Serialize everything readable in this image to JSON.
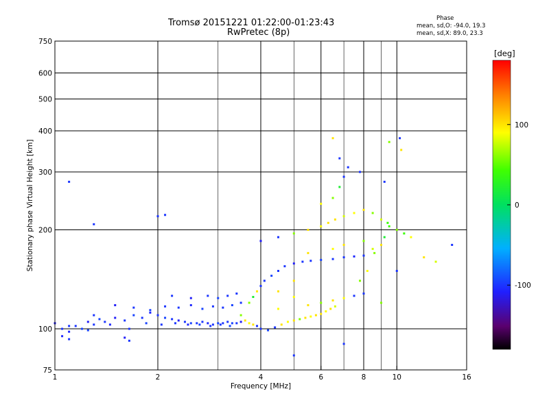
{
  "header": {
    "title_line1": "Tromsø 20151221 01:22:00-01:23:43",
    "title_line2": "RwPretec (8p)"
  },
  "phase_info": {
    "heading": "Phase",
    "line_o": "mean, sd,O: -94.0, 19.3",
    "line_x": "mean, sd,X:  89.0, 23.3"
  },
  "colorbar": {
    "label": "[deg]",
    "ticks": [
      {
        "label": "100",
        "value": 100
      },
      {
        "label": "0",
        "value": 0
      },
      {
        "label": "-100",
        "value": -100
      }
    ],
    "range": [
      -180,
      180
    ]
  },
  "chart_data": {
    "type": "scatter",
    "title": "Tromsø 20151221 01:22:00-01:23:43",
    "subtitle": "RwPretec (8p)",
    "xlabel": "Frequency [MHz]",
    "ylabel": "Stationary phase Virtual Height [km]",
    "xscale": "log",
    "yscale": "log",
    "xlim": [
      1,
      16
    ],
    "ylim": [
      75,
      750
    ],
    "x_ticks": [
      {
        "label": "1",
        "value": 1
      },
      {
        "label": "2",
        "value": 2
      },
      {
        "label": "4",
        "value": 4
      },
      {
        "label": "6",
        "value": 6
      },
      {
        "label": "8",
        "value": 8
      },
      {
        "label": "10",
        "value": 10
      },
      {
        "label": "16",
        "value": 16
      }
    ],
    "x_grid": [
      2,
      4,
      6,
      8,
      10
    ],
    "x_minor": [
      3,
      5,
      7,
      9
    ],
    "y_ticks": [
      {
        "label": "75",
        "value": 75
      },
      {
        "label": "100",
        "value": 100
      },
      {
        "label": "200",
        "value": 200
      },
      {
        "label": "300",
        "value": 300
      },
      {
        "label": "400",
        "value": 400
      },
      {
        "label": "500",
        "value": 500
      },
      {
        "label": "600",
        "value": 600
      },
      {
        "label": "750",
        "value": 750
      }
    ],
    "y_grid": [
      100,
      200,
      300,
      400,
      500,
      600
    ],
    "color_scale": "rainbow phase [deg], -180 (black/violet) to 180 (red)",
    "series": [
      {
        "name": "E-layer trace",
        "points": [
          [
            1.0,
            104,
            -110
          ],
          [
            1.05,
            100,
            -100
          ],
          [
            1.1,
            98,
            -105
          ],
          [
            1.15,
            102,
            -100
          ],
          [
            1.2,
            100,
            -95
          ],
          [
            1.25,
            105,
            -110
          ],
          [
            1.3,
            103,
            -100
          ],
          [
            1.35,
            107,
            -95
          ],
          [
            1.4,
            105,
            -100
          ],
          [
            1.5,
            108,
            -110
          ],
          [
            1.6,
            106,
            -100
          ],
          [
            1.7,
            110,
            -95
          ],
          [
            1.8,
            108,
            -100
          ],
          [
            1.9,
            112,
            -105
          ],
          [
            2.0,
            110,
            -100
          ],
          [
            2.1,
            108,
            -95
          ],
          [
            2.2,
            107,
            -100
          ],
          [
            2.3,
            106,
            -110
          ],
          [
            2.4,
            105,
            -100
          ],
          [
            2.5,
            104,
            -95
          ],
          [
            2.6,
            104,
            -100
          ],
          [
            2.7,
            105,
            -100
          ],
          [
            2.8,
            104,
            -105
          ],
          [
            2.9,
            103,
            -100
          ],
          [
            3.0,
            104,
            -95
          ],
          [
            3.1,
            104,
            -100
          ],
          [
            3.2,
            105,
            -100
          ],
          [
            3.3,
            104,
            -95
          ],
          [
            3.4,
            104,
            -100
          ],
          [
            3.5,
            105,
            -110
          ],
          [
            1.1,
            102,
            -100
          ],
          [
            1.25,
            99,
            -95
          ],
          [
            1.45,
            103,
            -105
          ],
          [
            1.65,
            100,
            -100
          ],
          [
            1.85,
            104,
            -95
          ],
          [
            2.05,
            103,
            -100
          ],
          [
            2.25,
            104,
            -100
          ],
          [
            2.45,
            103,
            -105
          ],
          [
            2.65,
            103,
            -95
          ],
          [
            2.85,
            102,
            -100
          ],
          [
            3.05,
            103,
            -100
          ],
          [
            3.25,
            102,
            -95
          ],
          [
            1.3,
            110,
            -100
          ],
          [
            1.5,
            118,
            -110
          ],
          [
            1.7,
            116,
            -100
          ],
          [
            1.9,
            114,
            -95
          ],
          [
            2.1,
            117,
            -100
          ],
          [
            2.3,
            116,
            -100
          ],
          [
            2.5,
            118,
            -105
          ],
          [
            2.7,
            115,
            -95
          ],
          [
            2.9,
            117,
            -100
          ],
          [
            3.1,
            116,
            -100
          ],
          [
            3.3,
            118,
            -95
          ],
          [
            3.5,
            120,
            -100
          ],
          [
            2.2,
            126,
            -100
          ],
          [
            2.5,
            124,
            -110
          ],
          [
            2.8,
            126,
            -100
          ],
          [
            3.0,
            124,
            -95
          ],
          [
            3.2,
            126,
            -100
          ],
          [
            3.4,
            128,
            -100
          ],
          [
            1.6,
            94,
            -110
          ],
          [
            1.65,
            92,
            -100
          ],
          [
            1.05,
            95,
            -105
          ],
          [
            1.1,
            93,
            -100
          ]
        ]
      },
      {
        "name": "Transition and F-layer trace",
        "points": [
          [
            3.6,
            106,
            100
          ],
          [
            3.7,
            104,
            90
          ],
          [
            3.8,
            103,
            100
          ],
          [
            3.9,
            102,
            -100
          ],
          [
            4.0,
            100,
            -100
          ],
          [
            4.2,
            99,
            -95
          ],
          [
            4.4,
            101,
            -100
          ],
          [
            4.6,
            103,
            100
          ],
          [
            4.8,
            105,
            90
          ],
          [
            5.0,
            106,
            100
          ],
          [
            5.2,
            107,
            60
          ],
          [
            5.4,
            108,
            100
          ],
          [
            5.6,
            109,
            90
          ],
          [
            5.8,
            110,
            100
          ],
          [
            6.0,
            111,
            100
          ],
          [
            6.2,
            113,
            90
          ],
          [
            6.4,
            115,
            100
          ],
          [
            6.6,
            117,
            80
          ],
          [
            3.7,
            120,
            60
          ],
          [
            3.8,
            125,
            20
          ],
          [
            3.9,
            130,
            100
          ],
          [
            4.0,
            135,
            -100
          ],
          [
            4.1,
            140,
            -100
          ],
          [
            4.3,
            145,
            -95
          ],
          [
            4.5,
            150,
            -100
          ],
          [
            4.7,
            155,
            -100
          ],
          [
            5.0,
            158,
            -110
          ],
          [
            5.3,
            160,
            -100
          ],
          [
            5.6,
            161,
            -100
          ],
          [
            6.0,
            162,
            -95
          ],
          [
            6.5,
            163,
            -100
          ],
          [
            7.0,
            165,
            -100
          ],
          [
            7.5,
            166,
            -105
          ],
          [
            8.0,
            167,
            -100
          ],
          [
            4.0,
            185,
            -110
          ],
          [
            4.5,
            190,
            -100
          ],
          [
            5.0,
            195,
            60
          ],
          [
            5.5,
            200,
            100
          ],
          [
            6.0,
            205,
            90
          ],
          [
            6.3,
            210,
            100
          ],
          [
            6.6,
            215,
            100
          ],
          [
            7.0,
            220,
            80
          ],
          [
            7.5,
            225,
            90
          ],
          [
            8.0,
            230,
            100
          ],
          [
            8.5,
            225,
            60
          ],
          [
            9.0,
            215,
            80
          ],
          [
            9.5,
            205,
            40
          ],
          [
            10.0,
            200,
            60
          ],
          [
            10.5,
            195,
            40
          ],
          [
            11.0,
            190,
            90
          ],
          [
            6.0,
            240,
            90
          ],
          [
            6.5,
            250,
            60
          ],
          [
            6.8,
            270,
            20
          ],
          [
            7.0,
            290,
            -100
          ],
          [
            7.2,
            310,
            -100
          ],
          [
            6.5,
            380,
            100
          ],
          [
            9.5,
            370,
            60
          ],
          [
            10.2,
            380,
            -100
          ],
          [
            10.3,
            350,
            100
          ],
          [
            14.5,
            180,
            -100
          ],
          [
            1.3,
            208,
            -100
          ],
          [
            2.0,
            220,
            -100
          ],
          [
            2.1,
            222,
            -100
          ],
          [
            1.1,
            280,
            -100
          ],
          [
            4.5,
            130,
            100
          ],
          [
            5.0,
            125,
            90
          ],
          [
            5.5,
            118,
            100
          ],
          [
            6.0,
            120,
            60
          ],
          [
            6.5,
            122,
            100
          ],
          [
            7.0,
            124,
            90
          ],
          [
            7.5,
            126,
            -100
          ],
          [
            8.0,
            128,
            -100
          ],
          [
            7.8,
            140,
            60
          ],
          [
            8.2,
            150,
            90
          ],
          [
            8.6,
            170,
            60
          ],
          [
            9.0,
            180,
            100
          ],
          [
            9.2,
            190,
            20
          ],
          [
            9.4,
            210,
            40
          ],
          [
            8.5,
            175,
            80
          ],
          [
            8.0,
            185,
            60
          ],
          [
            7.0,
            180,
            100
          ],
          [
            6.5,
            175,
            90
          ],
          [
            5.5,
            170,
            100
          ],
          [
            5.0,
            140,
            100
          ],
          [
            4.5,
            115,
            90
          ],
          [
            3.5,
            110,
            60
          ],
          [
            12.0,
            165,
            100
          ],
          [
            13.0,
            160,
            80
          ],
          [
            5.0,
            83,
            -100
          ],
          [
            7.0,
            90,
            -100
          ],
          [
            9.0,
            120,
            60
          ],
          [
            10.0,
            150,
            -100
          ],
          [
            6.8,
            330,
            -100
          ],
          [
            7.8,
            300,
            -100
          ],
          [
            9.2,
            280,
            -100
          ]
        ]
      }
    ]
  }
}
